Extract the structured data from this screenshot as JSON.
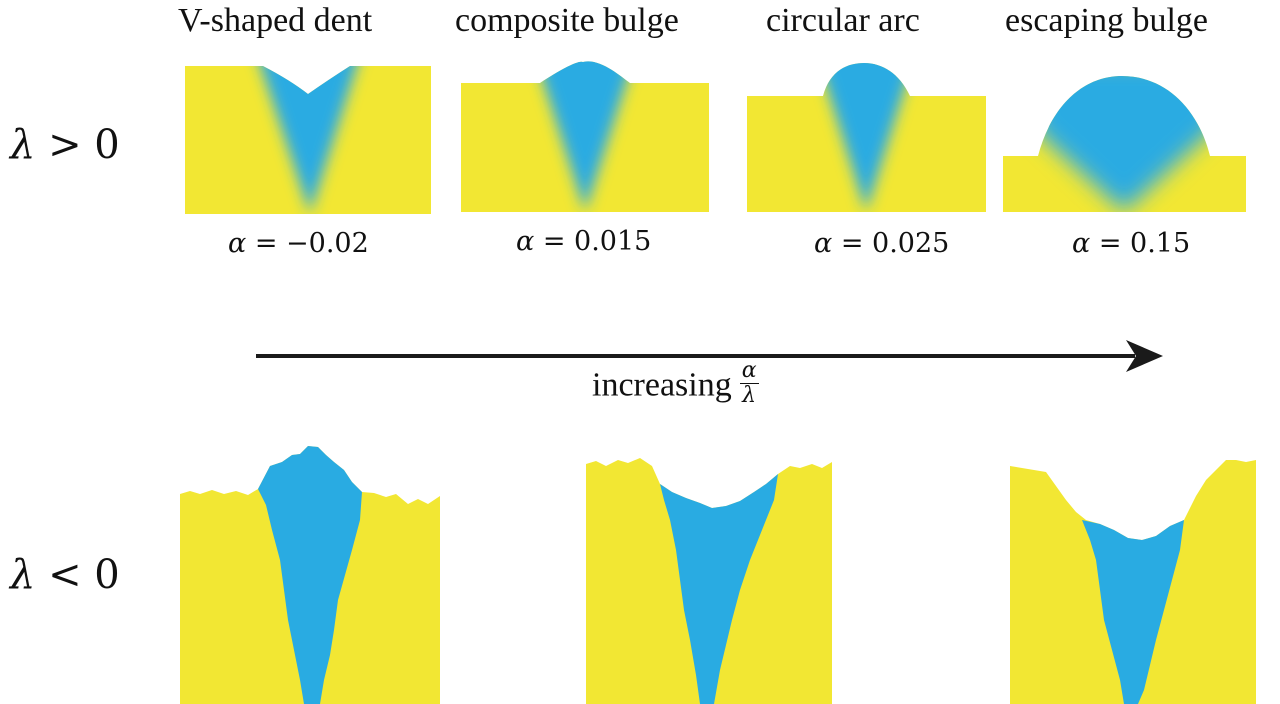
{
  "titles": [
    "V-shaped dent",
    "composite bulge",
    "circular arc",
    "escaping bulge"
  ],
  "alphas": [
    {
      "sym": "α",
      "eq": " = −0.02"
    },
    {
      "sym": "α",
      "eq": " = 0.015"
    },
    {
      "sym": "α",
      "eq": " = 0.025"
    },
    {
      "sym": "α",
      "eq": " = 0.15"
    }
  ],
  "rows": {
    "top": {
      "sym": "λ",
      "rel": " > 0"
    },
    "bottom": {
      "sym": "λ",
      "rel": " < 0"
    }
  },
  "arrow": {
    "text": "increasing",
    "num": "α",
    "den": "λ"
  },
  "colors": {
    "solid": "#f2e733",
    "liquid": "#29abe2",
    "arrow": "#1a1a1a"
  }
}
